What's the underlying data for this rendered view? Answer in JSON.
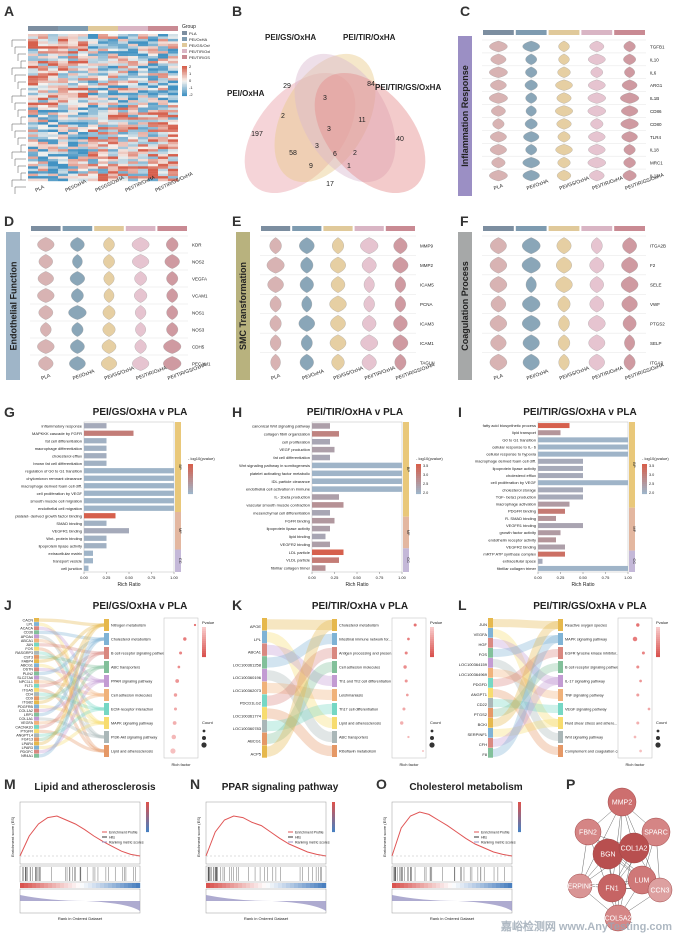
{
  "panel_labels": [
    "A",
    "B",
    "C",
    "D",
    "E",
    "F",
    "G",
    "H",
    "I",
    "J",
    "K",
    "L",
    "M",
    "N",
    "O",
    "P"
  ],
  "groups": [
    "PLA",
    "PEI/OxHA",
    "PEI/GS/OxHA",
    "PEI/TIR/OxHA",
    "PEI/TIR/GS/OxHA"
  ],
  "group_colors": [
    "#7c8ea0",
    "#7e9bb0",
    "#e0c99a",
    "#d9b5c4",
    "#c98a93"
  ],
  "heatmap": {
    "legend_title": "Group",
    "scale_ticks": [
      "2",
      "1",
      "0",
      "-1",
      "-2"
    ],
    "colors": {
      "high": "#d6604d",
      "mid": "#f7f4f0",
      "low": "#4393c3"
    }
  },
  "venn": {
    "sets": [
      "PEI/OxHA",
      "PEI/GS/OxHA",
      "PEI/TIR/OxHA",
      "PEI/TIR/GS/OxHA"
    ],
    "set_colors": [
      "#e8a0a8",
      "#e9c98a",
      "#d9b8cf",
      "#e58c8c"
    ],
    "numbers": [
      "197",
      "29",
      "84",
      "40",
      "2",
      "3",
      "3",
      "11",
      "58",
      "3",
      "6",
      "2",
      "9",
      "1",
      "17"
    ]
  },
  "violins": [
    {
      "title": "Inflammation Response",
      "genes": [
        "TGFB1",
        "IL10",
        "IL6",
        "ARG1",
        "IL1B",
        "CD86",
        "CD80",
        "TLR4",
        "IL18",
        "MRC1",
        "IL13"
      ]
    },
    {
      "title": "Endothelial Function",
      "genes": [
        "KDR",
        "NOS2",
        "VEGFA",
        "VCAM1",
        "NOS1",
        "NOS3",
        "CDH5",
        "PECAM1"
      ]
    },
    {
      "title": "SMC Transformation",
      "genes": [
        "MMP9",
        "MMP2",
        "ICAM5",
        "PCNA",
        "ICAM3",
        "ICAM1",
        "TAGLN"
      ]
    },
    {
      "title": "Coagulation Process",
      "genes": [
        "ITGA2B",
        "F2",
        "SELE",
        "VWF",
        "PTGS2",
        "SELP",
        "ITGA3"
      ]
    }
  ],
  "violin_colors": [
    "#d8b3b3",
    "#8aa6b8",
    "#e6cfa3",
    "#e6c4d0",
    "#cf9aa1"
  ],
  "sidebar_colors": [
    "#9b8fc4",
    "#9fb5c8",
    "#b8b27e",
    "#a6a8a8"
  ],
  "go_x_label": "Rich Ratio",
  "go_legend_title": "- log10(pvalue)",
  "go_ticks": [
    "0.00",
    "0.25",
    "0.50",
    "0.75",
    "1.00"
  ],
  "go_bar_colors": {
    "high": "#d6604d",
    "low": "#9fb4c8"
  },
  "go_category_colors": {
    "BP": "#e9c87a",
    "MF": "#e3b7a0",
    "CC": "#c4b8d8"
  },
  "kegg_x_label": "Rich factor",
  "kegg_legend": {
    "pvalue": "Pvalue",
    "count": "Count"
  },
  "gsea_legend": [
    "Enrichment Profile",
    "Hits",
    "Ranking metric scores"
  ],
  "gsea_axes": {
    "y1": "Enrichment score (ES)",
    "y3": "Ranked list metric",
    "x": "Rank in Ordered Dataset"
  },
  "ppi": {
    "nodes": [
      {
        "label": "MMP2",
        "shade": "#cd6f6f"
      },
      {
        "label": "FBN2",
        "shade": "#d58585"
      },
      {
        "label": "SPARC",
        "shade": "#d58585"
      },
      {
        "label": "BGN",
        "shade": "#b84f4f"
      },
      {
        "label": "COL1A2",
        "shade": "#b84f4f"
      },
      {
        "label": "SERPINF1",
        "shade": "#d99595"
      },
      {
        "label": "FN1",
        "shade": "#c66464"
      },
      {
        "label": "LUM",
        "shade": "#cf7878"
      },
      {
        "label": "CCN3",
        "shade": "#dda0a0"
      },
      {
        "label": "COL5A2",
        "shade": "#d58787"
      }
    ]
  },
  "watermark": "嘉峪检测网 www.AnyTesting.com",
  "chart_data": [
    {
      "type": "bar",
      "title": "PEI/GS/OxHA v PLA",
      "xlabel": "Rich Ratio",
      "legend_title": "- log10(pvalue)",
      "xlim": [
        0,
        1
      ],
      "categories": [
        "inflammatory response",
        "MAPKKK cascade by FGFR",
        "fat cell differentiation",
        "macrophage differentiation",
        "cholesterol efflux",
        "brown fat cell differentiation",
        "regulation of G0 to G1 transition",
        "chylomicron remnant clearance",
        "macrophage derived foam cell diff.",
        "cell proliferation by VEGF",
        "smooth muscle cell migration",
        "endothelial cell migration",
        "platelet- derived growth factor binding",
        "SMAD binding",
        "VEGFR1 binding",
        "Wnt- protein binding",
        "lipoprotein lipase activity",
        "extracellular matrix",
        "transport vesicle",
        "cell junction"
      ],
      "values": [
        0.25,
        0.55,
        0.25,
        0.25,
        0.25,
        0.25,
        1.0,
        1.0,
        1.0,
        1.0,
        1.0,
        1.0,
        0.35,
        0.25,
        0.5,
        0.25,
        0.25,
        0.1,
        0.1,
        0.05
      ],
      "neglog10p": [
        1.2,
        2.6,
        1.0,
        1.0,
        1.1,
        1.0,
        0.9,
        0.9,
        0.9,
        0.9,
        0.9,
        0.9,
        3.5,
        1.0,
        1.2,
        1.0,
        1.0,
        0.9,
        0.9,
        0.9
      ],
      "category_groups": [
        "BP",
        "BP",
        "BP",
        "BP",
        "BP",
        "BP",
        "BP",
        "BP",
        "BP",
        "BP",
        "BP",
        "BP",
        "MF",
        "MF",
        "MF",
        "MF",
        "MF",
        "CC",
        "CC",
        "CC"
      ]
    },
    {
      "type": "bar",
      "title": "PEI/TIR/OxHA v PLA",
      "xlabel": "Rich Ratio",
      "legend_title": "- log10(pvalue)",
      "xlim": [
        0,
        1
      ],
      "legend_ticks": [
        "3.5",
        "3.0",
        "2.5",
        "2.0"
      ],
      "categories": [
        "canonical Wnt signaling pathway",
        "collagen fibril organization",
        "cell proliferation",
        "VEGF production",
        "fat cell differentiation",
        "Wnt signaling pathway in somitogenesis",
        "platelet activating factor metabolic",
        "IDL particle clearance",
        "endothelial cell activation in immune",
        "IL- 1beta production",
        "vascular smooth muscle contraction",
        "mesenchymal cell differentiation",
        "FGFR binding",
        "lipoprotein lipase activity",
        "lipid binding",
        "VEGFR2 binding",
        "LDL particle",
        "VLDL particle",
        "fibrillar collagen trimer"
      ],
      "values": [
        0.2,
        0.3,
        0.2,
        0.25,
        0.2,
        1.0,
        1.0,
        1.0,
        1.0,
        0.3,
        0.35,
        0.2,
        0.25,
        0.2,
        0.15,
        0.2,
        0.35,
        0.3,
        0.15
      ],
      "neglog10p": [
        2.4,
        2.8,
        2.3,
        2.4,
        2.3,
        2.1,
        2.1,
        2.1,
        2.1,
        2.4,
        2.6,
        2.3,
        2.5,
        2.4,
        2.3,
        2.4,
        3.3,
        2.9,
        2.6
      ],
      "category_groups": [
        "BP",
        "BP",
        "BP",
        "BP",
        "BP",
        "BP",
        "BP",
        "BP",
        "BP",
        "BP",
        "BP",
        "BP",
        "MF",
        "MF",
        "MF",
        "MF",
        "CC",
        "CC",
        "CC"
      ]
    },
    {
      "type": "bar",
      "title": "PEI/TIR/GS/OxHA v PLA",
      "xlabel": "Rich Ratio",
      "legend_title": "- log10(pvalue)",
      "xlim": [
        0,
        1
      ],
      "legend_ticks": [
        "3.5",
        "3.0",
        "2.5",
        "2.0"
      ],
      "categories": [
        "fatty acid biosynthetic process",
        "lipid transport",
        "G0 to G1 transition",
        "cellular response to IL- 6",
        "cellular response to hypoxia",
        "macrophage derived foam cell diff.",
        "lipoprotein lipase activity",
        "cholesterol efflux",
        "cell proliferation by VEGF",
        "cholesterol storage",
        "TGF- beta1 production",
        "macrophage activation",
        "PDGFR binding",
        "R- SMAD binding",
        "VEGFR1 binding",
        "growth factor activity",
        "endothelin receptor activity",
        "VEGFR2 binding",
        "mRTP ATP synthase complex",
        "extracellular space",
        "fibrillar collagen trimer"
      ],
      "values": [
        0.35,
        0.25,
        1.0,
        1.0,
        1.0,
        0.5,
        0.5,
        0.5,
        1.0,
        0.5,
        0.5,
        0.35,
        0.3,
        0.2,
        0.5,
        0.25,
        0.2,
        0.3,
        0.3,
        0.05,
        1.0
      ],
      "neglog10p": [
        3.6,
        2.6,
        2.0,
        2.0,
        2.0,
        2.2,
        2.2,
        2.2,
        2.0,
        2.2,
        2.2,
        2.5,
        3.1,
        2.6,
        2.3,
        2.5,
        2.6,
        2.4,
        3.3,
        2.2,
        2.0
      ],
      "category_groups": [
        "BP",
        "BP",
        "BP",
        "BP",
        "BP",
        "BP",
        "BP",
        "BP",
        "BP",
        "BP",
        "BP",
        "BP",
        "MF",
        "MF",
        "MF",
        "MF",
        "MF",
        "MF",
        "CC",
        "CC",
        "CC"
      ]
    },
    {
      "type": "scatter",
      "title": "PEI/GS/OxHA v PLA",
      "xlabel": "Rich factor",
      "genes": [
        "CACN",
        "LPL",
        "ACACA",
        "CD36",
        "APOA4",
        "ABCA1",
        "JUN",
        "FOS",
        "RASGRP3",
        "CST3",
        "FABP4",
        "ABCG1",
        "OSTN",
        "PLIN2",
        "SLC27A6",
        "NPC1L1",
        "FLT1",
        "ITGA5",
        "CD4",
        "CD9",
        "ITGB2",
        "PDGFRB",
        "COL1A2",
        "LRP1",
        "COL1A1",
        "VEGFA",
        "CACNA1D",
        "PTGFR",
        "ANGPTL4",
        "FGF13",
        "LPAR4",
        "LPAR3",
        "PDGFC",
        "NR4A1"
      ],
      "pathways": [
        "Nitrogen metabolism",
        "Cholesterol metabolism",
        "B cell receptor signaling pathway",
        "ABC transporters",
        "PPAR signaling pathway",
        "Cell adhesion molecules",
        "ECM-receptor interaction",
        "MAPK signaling pathway",
        "PI3K-Akt signaling pathway",
        "Lipid and atherosclerosis"
      ],
      "rich_factor": [
        0.33,
        0.21,
        0.16,
        0.14,
        0.12,
        0.1,
        0.1,
        0.09,
        0.08,
        0.07
      ],
      "count": [
        2,
        5,
        4,
        3,
        6,
        5,
        4,
        6,
        8,
        10
      ]
    },
    {
      "type": "scatter",
      "title": "PEI/TIR/OxHA v PLA",
      "xlabel": "Rich factor",
      "genes": [
        "APOE",
        "LPL",
        "ABCA1",
        "LOC100361258",
        "LOC100360196",
        "LOC100362073",
        "PDCD1LG2",
        "LOC100361774",
        "LOC100360783",
        "ABCG1",
        "ACP5"
      ],
      "pathways": [
        "Cholesterol metabolism",
        "Intestinal immune network for...",
        "Antigen processing and presen...",
        "Cell adhesion molecules",
        "Th1 and Th2 cell differentiation",
        "Leishmaniasis",
        "Th17 cell differentiation",
        "Lipid and atherosclerosis",
        "ABC transporters",
        "Riboflavin metabolism"
      ],
      "rich_factor": [
        0.18,
        0.12,
        0.1,
        0.09,
        0.1,
        0.11,
        0.08,
        0.06,
        0.12,
        0.25
      ],
      "count": [
        4,
        3,
        4,
        5,
        4,
        3,
        4,
        5,
        2,
        1
      ]
    },
    {
      "type": "scatter",
      "title": "PEI/TIR/GS/OxHA v PLA",
      "xlabel": "Rich factor",
      "genes": [
        "JUN",
        "VEGFA",
        "HGF",
        "FOS",
        "LOC100364159",
        "LOC100364969",
        "PDGFD",
        "ANGPT1",
        "CD22",
        "PTGS2",
        "BCKI",
        "SERPINF1",
        "CFH",
        "F8"
      ],
      "pathways": [
        "Reactive oxygen species",
        "MAPK signaling pathway",
        "EGFR tyrosine kinase inhibitor...",
        "B cell receptor signaling pathway",
        "IL-17 signaling pathway",
        "TNF signaling pathway",
        "VEGF signaling pathway",
        "Fluid shear stress and athero...",
        "Wnt signaling pathway",
        "Complement and coagulation ca..."
      ],
      "rich_factor": [
        0.06,
        0.05,
        0.08,
        0.06,
        0.07,
        0.06,
        0.1,
        0.06,
        0.05,
        0.07
      ],
      "count": [
        5,
        8,
        4,
        4,
        3,
        4,
        3,
        4,
        3,
        3
      ]
    },
    {
      "type": "line",
      "title": "Lipid and atherosclerosis",
      "xlabel": "Rank in Ordered Dataset",
      "ylabel": "Enrichment score (ES)",
      "es_curve": [
        0,
        0.25,
        0.4,
        0.48,
        0.5,
        0.45,
        0.4,
        0.33,
        0.25,
        0.18,
        0.12,
        0.06,
        0.02,
        0
      ]
    },
    {
      "type": "line",
      "title": "PPAR signaling pathway",
      "xlabel": "Rank in Ordered Dataset",
      "ylabel": "Enrichment score (ES)",
      "es_curve": [
        0,
        0.3,
        0.45,
        0.5,
        0.48,
        0.42,
        0.38,
        0.3,
        0.22,
        0.15,
        0.1,
        0.05,
        0.02,
        0
      ]
    },
    {
      "type": "line",
      "title": "Cholesterol metabolism",
      "xlabel": "Rank in Ordered Dataset",
      "ylabel": "Enrichment score (ES)",
      "es_curve": [
        0,
        0.35,
        0.5,
        0.55,
        0.52,
        0.45,
        0.38,
        0.3,
        0.22,
        0.15,
        0.1,
        0.05,
        0.02,
        0
      ]
    }
  ]
}
